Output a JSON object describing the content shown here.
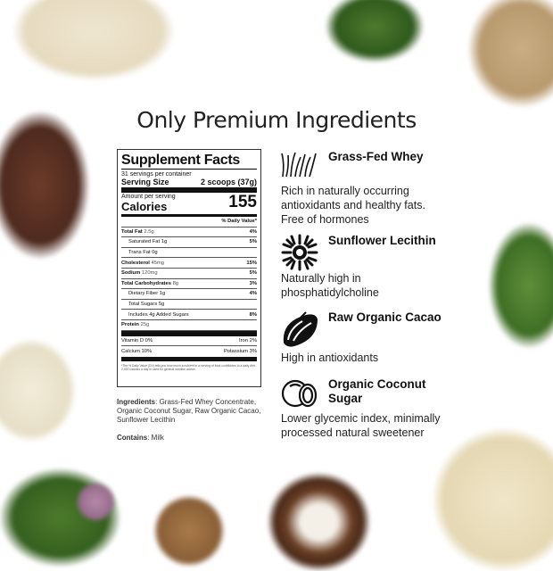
{
  "title": "Only Premium Ingredients",
  "facts": {
    "title": "Supplement Facts",
    "servings": "31 servings per container",
    "serving_size_label": "Serving Size",
    "serving_size": "2 scoops (37g)",
    "amount_label": "Amount per serving",
    "calories_label": "Calories",
    "calories": "155",
    "dv_label": "% Daily Value*",
    "rows": [
      {
        "name": "Total Fat",
        "amt": "2.5g",
        "dv": "4%",
        "bold": true,
        "indent": false
      },
      {
        "name": "Saturated Fat 1g",
        "amt": "",
        "dv": "5%",
        "bold": false,
        "indent": true
      },
      {
        "name": "Trans Fat 0g",
        "amt": "",
        "dv": "",
        "bold": false,
        "indent": true
      },
      {
        "name": "Cholesterol",
        "amt": "45mg",
        "dv": "15%",
        "bold": true,
        "indent": false
      },
      {
        "name": "Sodium",
        "amt": "120mg",
        "dv": "5%",
        "bold": true,
        "indent": false
      },
      {
        "name": "Total Carbohydrates",
        "amt": "8g",
        "dv": "3%",
        "bold": true,
        "indent": false
      },
      {
        "name": "Dietary Fiber 1g",
        "amt": "",
        "dv": "4%",
        "bold": false,
        "indent": true
      },
      {
        "name": "Total Sugars 5g",
        "amt": "",
        "dv": "",
        "bold": false,
        "indent": true
      },
      {
        "name": "Includes 4g Added Sugars",
        "amt": "",
        "dv": "8%",
        "bold": false,
        "indent": true
      },
      {
        "name": "Protein",
        "amt": "25g",
        "dv": "",
        "bold": true,
        "indent": false
      }
    ],
    "vitd": "Vitamin D   0%",
    "iron": "Iron   2%",
    "calcium": "Calcium   10%",
    "potassium": "Potassium   3%",
    "footnote": "*The % Daily Value (DV) tells you how much a nutrient in a serving of food contributes to a daily diet. 2,000 calories a day is used for general nutrition advice."
  },
  "ingredients": {
    "label": "Ingredients",
    "text": ": Grass-Fed Whey Concentrate, Organic Coconut Sugar, Raw Organic Cacao, Sunflower Lecithin"
  },
  "contains": {
    "label": "Contains",
    "text": ": Milk"
  },
  "features": [
    {
      "icon": "grass-icon",
      "title": "Grass-Fed Whey",
      "desc": "Rich in naturally occurring antioxidants and healthy fats. Free of hormones"
    },
    {
      "icon": "sunflower-icon",
      "title": "Sunflower Lecithin",
      "desc": "Naturally high in phosphatidylcholine"
    },
    {
      "icon": "cacao-pod-icon",
      "title": "Raw Organic Cacao",
      "desc": "High in antioxidants"
    },
    {
      "icon": "coconut-icon",
      "title": "Organic Coconut Sugar",
      "desc": "Lower glycemic index, minimally processed natural sweetener"
    }
  ]
}
